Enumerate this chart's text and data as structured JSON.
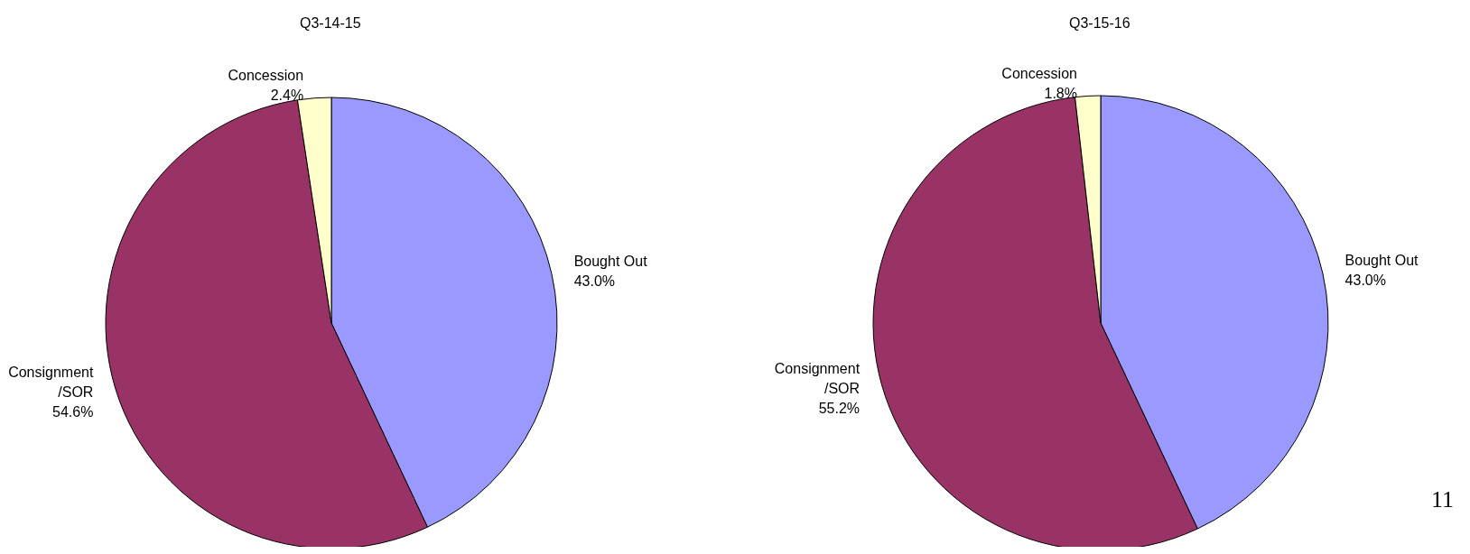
{
  "chart_data": [
    {
      "type": "pie",
      "title": "Q3-14-15",
      "categories": [
        "Bought Out",
        "Consignment\n/SOR",
        "Concession"
      ],
      "values": [
        43.0,
        54.6,
        2.4
      ],
      "value_labels": [
        "43.0%",
        "54.6%",
        "2.4%"
      ],
      "colors": [
        "#9999ff",
        "#993366",
        "#ffffcc"
      ],
      "legend": false
    },
    {
      "type": "pie",
      "title": "Q3-15-16",
      "categories": [
        "Bought Out",
        "Consignment\n/SOR",
        "Concession"
      ],
      "values": [
        43.0,
        55.2,
        1.8
      ],
      "value_labels": [
        "43.0%",
        "55.2%",
        "1.8%"
      ],
      "colors": [
        "#9999ff",
        "#993366",
        "#ffffcc"
      ],
      "legend": false,
      "annotations": [
        "11"
      ]
    }
  ]
}
